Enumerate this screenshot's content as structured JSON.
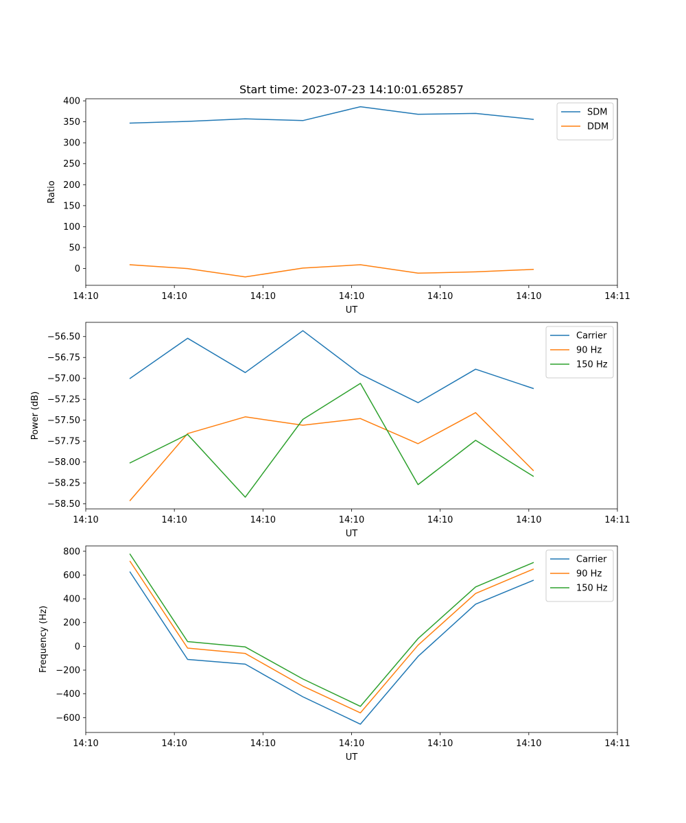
{
  "figure": {
    "title": "Start time: 2023-07-23 14:10:01.652857"
  },
  "chart_data": [
    {
      "type": "line",
      "title": "Start time: 2023-07-23 14:10:01.652857",
      "xlabel": "UT",
      "ylabel": "Ratio",
      "x": [
        0.5,
        1.15,
        1.8,
        2.45,
        3.1,
        3.75,
        4.4,
        5.05
      ],
      "xlim": [
        0,
        6
      ],
      "xticks": [
        0,
        1,
        2,
        3,
        4,
        5,
        6
      ],
      "xtick_labels": [
        "14:10",
        "14:10",
        "14:10",
        "14:10",
        "14:10",
        "14:10",
        "14:11"
      ],
      "ylim": [
        -40,
        405
      ],
      "yticks": [
        0,
        50,
        100,
        150,
        200,
        250,
        300,
        350,
        400
      ],
      "ytick_labels": [
        "0",
        "50",
        "100",
        "150",
        "200",
        "250",
        "300",
        "350",
        "400"
      ],
      "legend": "top-right",
      "series": [
        {
          "name": "SDM",
          "color": "#1f77b4",
          "values": [
            347,
            351,
            357,
            353,
            386,
            368,
            370,
            356
          ]
        },
        {
          "name": "DDM",
          "color": "#ff7f0e",
          "values": [
            9,
            0,
            -20,
            1,
            9,
            -11,
            -8,
            -2
          ]
        }
      ]
    },
    {
      "type": "line",
      "title": "",
      "xlabel": "UT",
      "ylabel": "Power (dB)",
      "x": [
        0.5,
        1.15,
        1.8,
        2.45,
        3.1,
        3.75,
        4.4,
        5.05
      ],
      "xlim": [
        0,
        6
      ],
      "xticks": [
        0,
        1,
        2,
        3,
        4,
        5,
        6
      ],
      "xtick_labels": [
        "14:10",
        "14:10",
        "14:10",
        "14:10",
        "14:10",
        "14:10",
        "14:11"
      ],
      "ylim": [
        -58.56,
        -56.33
      ],
      "yticks": [
        -58.5,
        -58.25,
        -58.0,
        -57.75,
        -57.5,
        -57.25,
        -57.0,
        -56.75,
        -56.5
      ],
      "ytick_labels": [
        "−58.50",
        "−58.25",
        "−58.00",
        "−57.75",
        "−57.50",
        "−57.25",
        "−57.00",
        "−56.75",
        "−56.50"
      ],
      "legend": "top-right",
      "series": [
        {
          "name": "Carrier",
          "color": "#1f77b4",
          "values": [
            -57.0,
            -56.52,
            -56.93,
            -56.43,
            -56.95,
            -57.29,
            -56.89,
            -57.12
          ]
        },
        {
          "name": "90 Hz",
          "color": "#ff7f0e",
          "values": [
            -58.46,
            -57.66,
            -57.46,
            -57.56,
            -57.48,
            -57.78,
            -57.41,
            -58.1
          ]
        },
        {
          "name": "150 Hz",
          "color": "#2ca02c",
          "values": [
            -58.01,
            -57.67,
            -58.42,
            -57.49,
            -57.06,
            -58.27,
            -57.74,
            -58.17
          ]
        }
      ]
    },
    {
      "type": "line",
      "title": "",
      "xlabel": "UT",
      "ylabel": "Frequency (Hz)",
      "x": [
        0.5,
        1.15,
        1.8,
        2.45,
        3.1,
        3.75,
        4.4,
        5.05
      ],
      "xlim": [
        0,
        6
      ],
      "xticks": [
        0,
        1,
        2,
        3,
        4,
        5,
        6
      ],
      "xtick_labels": [
        "14:10",
        "14:10",
        "14:10",
        "14:10",
        "14:10",
        "14:10",
        "14:11"
      ],
      "ylim": [
        -725,
        845
      ],
      "yticks": [
        -600,
        -400,
        -200,
        0,
        200,
        400,
        600,
        800
      ],
      "ytick_labels": [
        "−600",
        "−400",
        "−200",
        "0",
        "200",
        "400",
        "600",
        "800"
      ],
      "legend": "top-right",
      "series": [
        {
          "name": "Carrier",
          "color": "#1f77b4",
          "values": [
            625,
            -110,
            -150,
            -425,
            -655,
            -85,
            355,
            555
          ]
        },
        {
          "name": "90 Hz",
          "color": "#ff7f0e",
          "values": [
            715,
            -15,
            -60,
            -335,
            -560,
            10,
            445,
            650
          ]
        },
        {
          "name": "150 Hz",
          "color": "#2ca02c",
          "values": [
            775,
            40,
            -5,
            -275,
            -505,
            65,
            500,
            705
          ]
        }
      ]
    }
  ]
}
